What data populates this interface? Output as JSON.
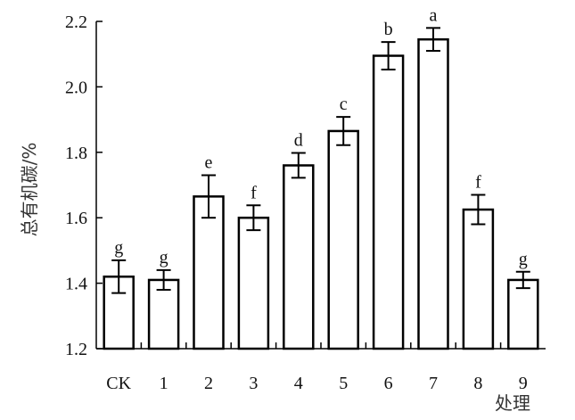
{
  "chart_data": {
    "type": "bar",
    "title": "",
    "xlabel": "处理",
    "ylabel": "总有机碳/%",
    "ylim": [
      1.2,
      2.2
    ],
    "yticks": [
      "1.2",
      "1.4",
      "1.6",
      "1.8",
      "2.0",
      "2.2"
    ],
    "categories": [
      "CK",
      "1",
      "2",
      "3",
      "4",
      "5",
      "6",
      "7",
      "8",
      "9"
    ],
    "values": [
      1.42,
      1.41,
      1.665,
      1.6,
      1.76,
      1.865,
      2.095,
      2.145,
      1.625,
      1.41
    ],
    "errors": [
      0.05,
      0.03,
      0.065,
      0.038,
      0.038,
      0.043,
      0.042,
      0.035,
      0.045,
      0.025
    ],
    "significance": [
      "g",
      "g",
      "e",
      "f",
      "d",
      "c",
      "b",
      "a",
      "f",
      "g"
    ],
    "grid": false,
    "legend": "none"
  }
}
